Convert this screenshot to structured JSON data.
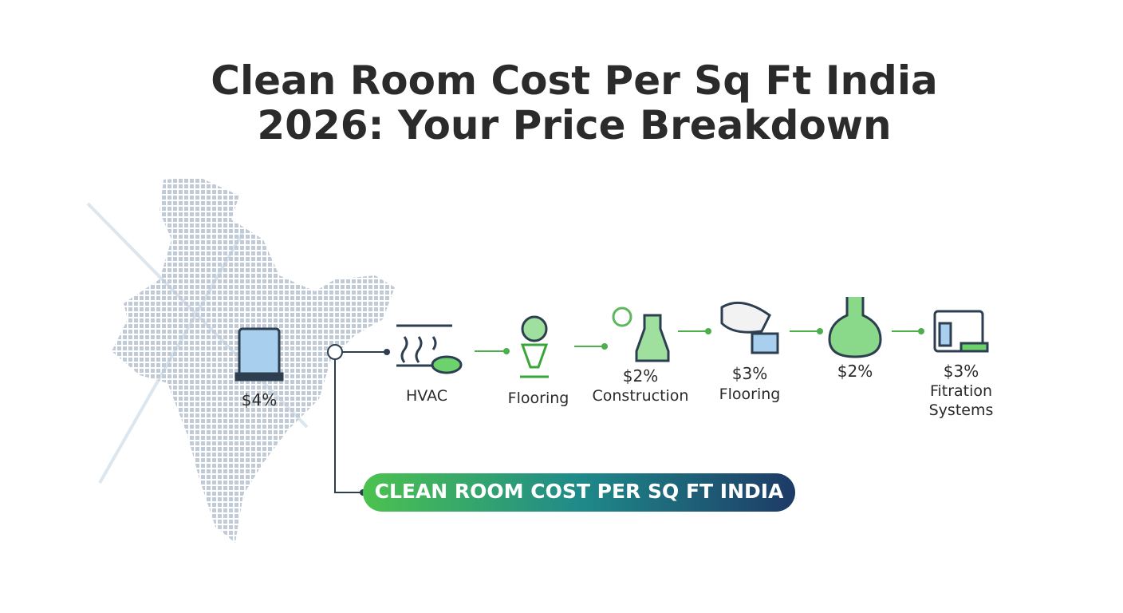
{
  "title": {
    "lines": [
      "Clean Room Cost Per Sq Ft India",
      "2026: Your Price Breakdown"
    ]
  },
  "nodes": [
    {
      "value": "$4%"
    },
    {
      "label": [
        "HVAC"
      ]
    },
    {
      "label": [
        "Flooring"
      ]
    },
    {
      "value": "$2%",
      "label": [
        "Construction"
      ]
    },
    {
      "value": "$3%",
      "label": [
        "Flooring"
      ]
    },
    {
      "value": "$2%"
    },
    {
      "value": "$3%",
      "label": [
        "Fitration",
        "Systems"
      ]
    }
  ],
  "banner": {
    "text": "CLEAN ROOM COST PER SQ FT INDIA"
  }
}
